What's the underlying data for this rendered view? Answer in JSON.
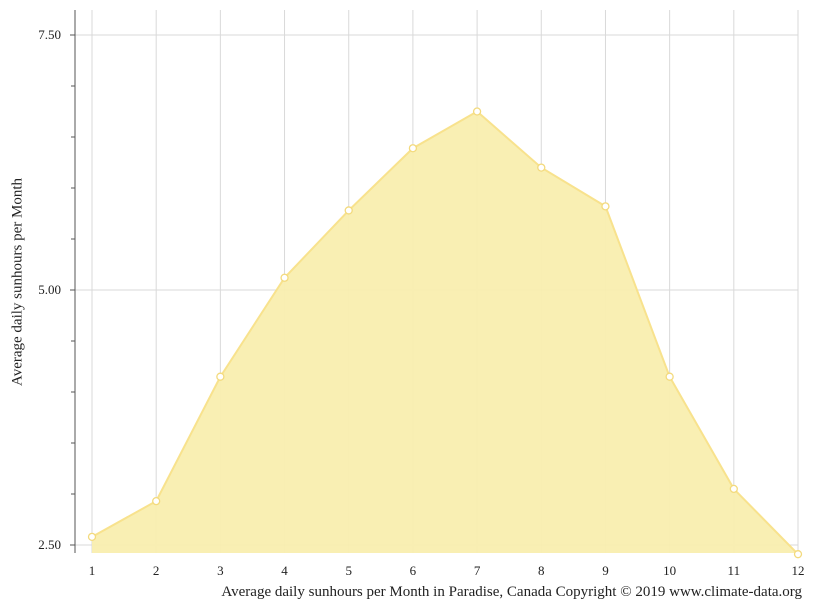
{
  "chart_data": {
    "type": "area",
    "title": "",
    "xlabel": "",
    "ylabel": "Average daily sunhours per Month",
    "caption": "Average daily sunhours per Month in Paradise, Canada Copyright © 2019 www.climate-data.org",
    "x": [
      1,
      2,
      3,
      4,
      5,
      6,
      7,
      8,
      9,
      10,
      11,
      12
    ],
    "x_tick_labels": [
      "1",
      "2",
      "3",
      "4",
      "5",
      "6",
      "7",
      "8",
      "9",
      "10",
      "11",
      "12"
    ],
    "y_tick_labels": [
      "7.50",
      "5.00",
      "2.50"
    ],
    "y_ticks": [
      7.5,
      5.0,
      2.5
    ],
    "ylim": [
      2.5,
      7.75
    ],
    "xlim": [
      1,
      12
    ],
    "grid": true,
    "legend": "none",
    "series": [
      {
        "values": [
          2.58,
          2.93,
          4.15,
          5.12,
          5.78,
          6.39,
          6.75,
          6.2,
          5.82,
          4.15,
          3.05,
          2.41
        ]
      }
    ],
    "colors": {
      "fill": "#f9eeaf",
      "line": "#f8e28d",
      "marker_fill": "#ffffff",
      "marker_stroke": "#f3da7d",
      "grid": "#d9d9d9",
      "axis": "#555555"
    }
  }
}
